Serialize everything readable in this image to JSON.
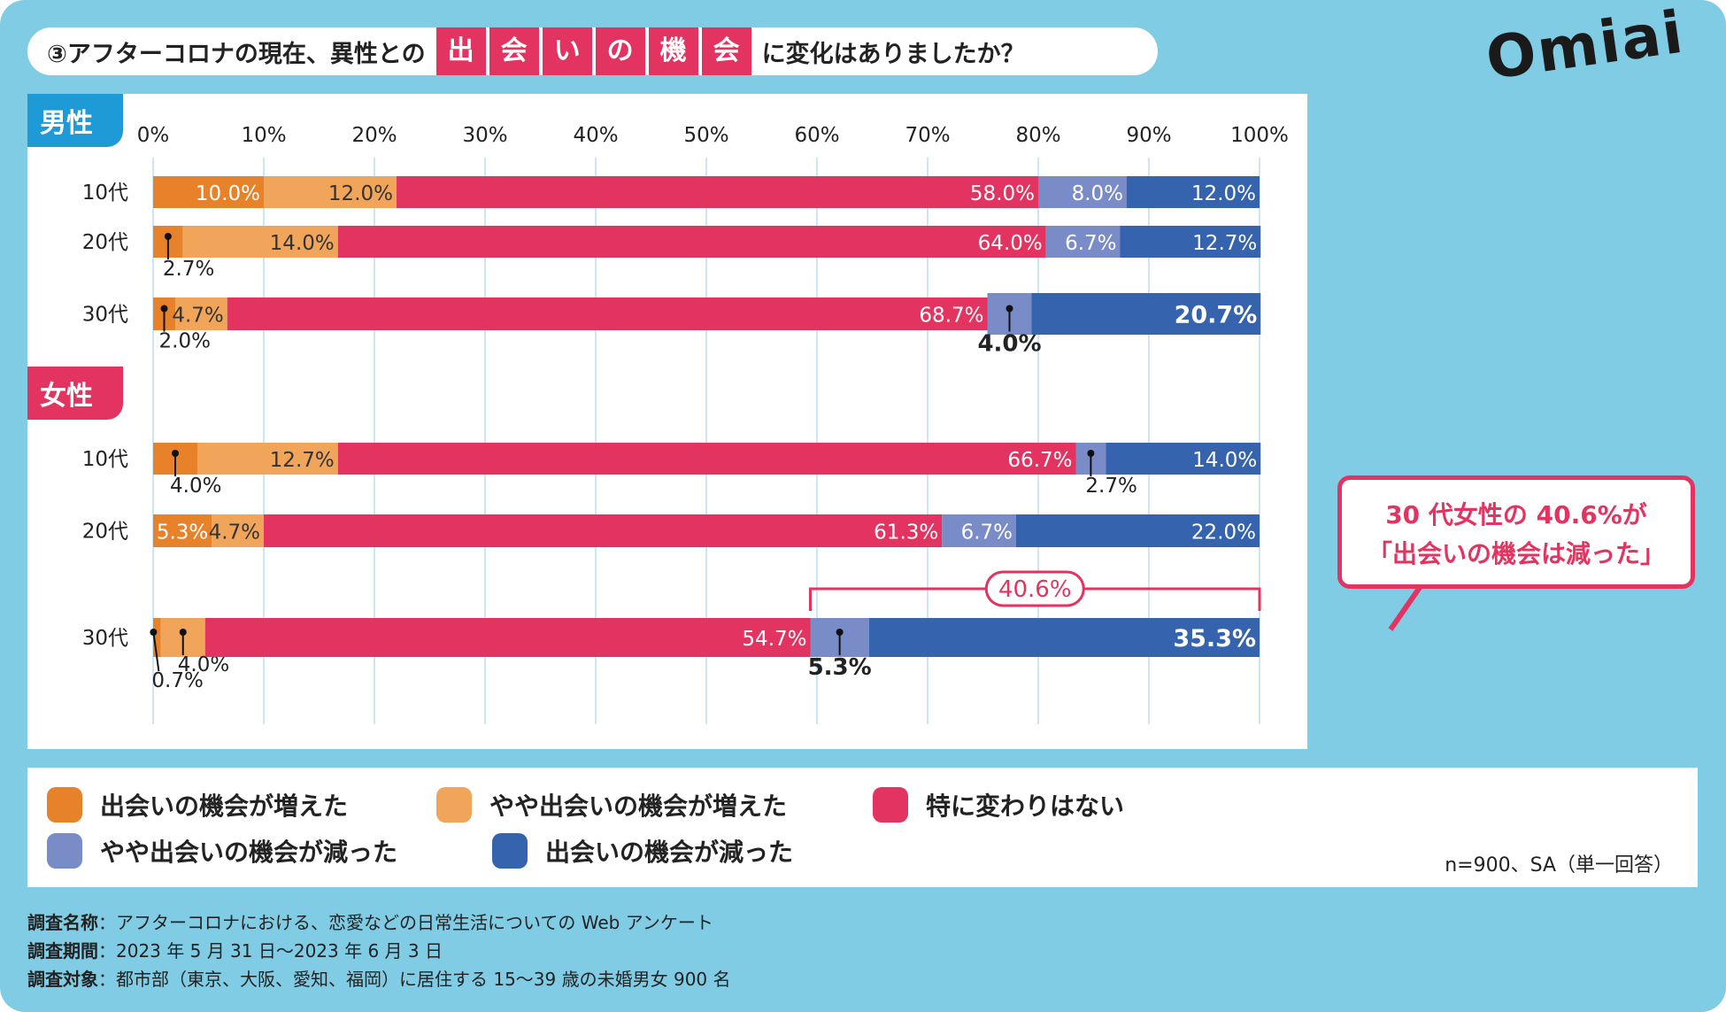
{
  "title": {
    "prefix": "③アフターコロナの現在、異性との",
    "highlight": [
      "出",
      "会",
      "い",
      "の",
      "機",
      "会"
    ],
    "suffix": "に変化はありましたか？"
  },
  "logo": "Omiai",
  "groups": {
    "male": "男性",
    "female": "女性"
  },
  "callout": {
    "line1": "30 代女性の 40.6%が",
    "line2": "「出会いの機会は減った」"
  },
  "legend": [
    {
      "label": "出会いの機会が増えた",
      "color": "#E8822A"
    },
    {
      "label": "やや出会いの機会が増えた",
      "color": "#F0A55A"
    },
    {
      "label": "特に変わりはない",
      "color": "#E33461"
    },
    {
      "label": "やや出会いの機会が減った",
      "color": "#7A8CC8"
    },
    {
      "label": "出会いの機会が減った",
      "color": "#3563AE"
    }
  ],
  "sample_note": "n=900、SA（単一回答）",
  "footer": [
    {
      "key": "調査名称",
      "value": "アフターコロナにおける、恋愛などの日常生活についての Web アンケート"
    },
    {
      "key": "調査期間",
      "value": "2023 年 5 月 31 日〜2023 年 6 月 3 日"
    },
    {
      "key": "調査対象",
      "value": "都市部（東京、大阪、愛知、福岡）に居住する 15〜39 歳の未婚男女 900 名"
    }
  ],
  "chart_data": {
    "type": "bar",
    "orientation": "horizontal-stacked",
    "xlim": [
      0,
      100
    ],
    "ticks": [
      "0%",
      "10%",
      "20%",
      "30%",
      "40%",
      "50%",
      "60%",
      "70%",
      "80%",
      "90%",
      "100%"
    ],
    "grid": true,
    "legend_placement": "bottom",
    "categories": [
      "10代",
      "20代",
      "30代",
      "10代",
      "20代",
      "30代"
    ],
    "category_groups": [
      "男性",
      "男性",
      "男性",
      "女性",
      "女性",
      "女性"
    ],
    "series": [
      {
        "name": "出会いの機会が増えた",
        "values": [
          10.0,
          2.7,
          2.0,
          4.0,
          5.3,
          0.7
        ]
      },
      {
        "name": "やや出会いの機会が増えた",
        "values": [
          12.0,
          14.0,
          4.7,
          12.7,
          4.7,
          4.0
        ]
      },
      {
        "name": "特に変わりはない",
        "values": [
          58.0,
          64.0,
          68.7,
          66.7,
          61.3,
          54.7
        ]
      },
      {
        "name": "やや出会いの機会が減った",
        "values": [
          8.0,
          6.7,
          4.0,
          2.7,
          6.7,
          5.3
        ]
      },
      {
        "name": "出会いの機会が減った",
        "values": [
          12.0,
          12.7,
          20.7,
          14.0,
          22.0,
          35.3
        ]
      }
    ],
    "annotation": {
      "label": "40.6%",
      "category_index": 5,
      "range": [
        59.4,
        100
      ]
    }
  }
}
